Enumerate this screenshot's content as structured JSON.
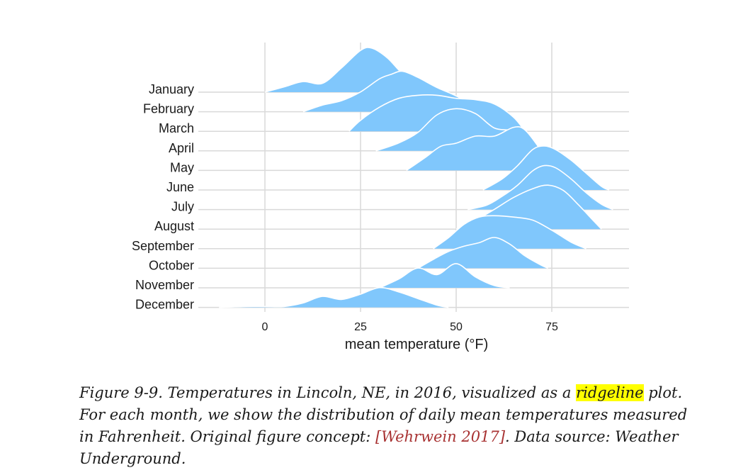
{
  "chart_data": {
    "type": "ridgeline",
    "xlabel": "mean temperature (°F)",
    "ylabel": "",
    "x_ticks": [
      0,
      25,
      50,
      75
    ],
    "xlim": [
      -13,
      95
    ],
    "grid": "vertical",
    "fill_color": "#80c7fc",
    "outline_color": "#ffffff",
    "categories": [
      "January",
      "February",
      "March",
      "April",
      "May",
      "June",
      "July",
      "August",
      "September",
      "October",
      "November",
      "December"
    ],
    "series": [
      {
        "name": "January",
        "x": [
          0,
          5,
          10,
          15,
          20,
          25,
          28,
          32,
          36,
          40,
          45,
          48
        ],
        "density": [
          0,
          0.12,
          0.24,
          0.2,
          0.55,
          0.95,
          1.0,
          0.78,
          0.42,
          0.2,
          0.06,
          0
        ]
      },
      {
        "name": "February",
        "x": [
          10,
          15,
          20,
          25,
          30,
          33,
          36,
          40,
          45,
          50,
          55,
          60
        ],
        "density": [
          0,
          0.15,
          0.25,
          0.45,
          0.75,
          0.85,
          0.92,
          0.78,
          0.55,
          0.36,
          0.12,
          0
        ]
      },
      {
        "name": "March",
        "x": [
          22,
          25,
          30,
          35,
          40,
          45,
          50,
          55,
          60,
          65,
          68
        ],
        "density": [
          0,
          0.25,
          0.55,
          0.75,
          0.82,
          0.82,
          0.75,
          0.72,
          0.62,
          0.32,
          0
        ]
      },
      {
        "name": "April",
        "x": [
          29,
          35,
          40,
          45,
          50,
          55,
          60,
          65,
          70,
          72
        ],
        "density": [
          0,
          0.18,
          0.42,
          0.82,
          0.96,
          0.85,
          0.52,
          0.45,
          0.2,
          0
        ]
      },
      {
        "name": "May",
        "x": [
          37,
          42,
          46,
          50,
          55,
          60,
          65,
          68,
          72,
          76
        ],
        "density": [
          0,
          0.3,
          0.55,
          0.62,
          0.78,
          0.78,
          0.98,
          0.92,
          0.48,
          0
        ]
      },
      {
        "name": "June",
        "x": [
          57,
          62,
          66,
          70,
          73,
          76,
          80,
          84,
          88,
          90
        ],
        "density": [
          0,
          0.25,
          0.55,
          0.92,
          1.0,
          0.92,
          0.68,
          0.38,
          0.08,
          0
        ]
      },
      {
        "name": "July",
        "x": [
          53,
          58,
          62,
          66,
          70,
          73,
          76,
          80,
          84,
          88,
          91
        ],
        "density": [
          0,
          0.1,
          0.3,
          0.55,
          0.88,
          1.0,
          0.95,
          0.7,
          0.38,
          0.12,
          0
        ]
      },
      {
        "name": "August",
        "x": [
          50,
          55,
          60,
          65,
          70,
          74,
          78,
          82,
          86,
          88
        ],
        "density": [
          0,
          0.2,
          0.45,
          0.72,
          0.92,
          1.0,
          0.88,
          0.55,
          0.18,
          0
        ]
      },
      {
        "name": "September",
        "x": [
          44,
          48,
          52,
          56,
          60,
          65,
          70,
          75,
          80,
          84
        ],
        "density": [
          0,
          0.25,
          0.55,
          0.72,
          0.75,
          0.72,
          0.65,
          0.42,
          0.15,
          0
        ]
      },
      {
        "name": "October",
        "x": [
          40,
          44,
          48,
          52,
          56,
          60,
          64,
          68,
          72,
          74
        ],
        "density": [
          0,
          0.2,
          0.38,
          0.5,
          0.58,
          0.7,
          0.55,
          0.28,
          0.08,
          0
        ]
      },
      {
        "name": "November",
        "x": [
          30,
          35,
          40,
          45,
          50,
          55,
          60,
          64
        ],
        "density": [
          0,
          0.2,
          0.45,
          0.3,
          0.55,
          0.25,
          0.05,
          0
        ]
      },
      {
        "name": "December",
        "x": [
          -12,
          -5,
          0,
          5,
          10,
          15,
          20,
          25,
          30,
          35,
          40,
          45,
          48
        ],
        "density": [
          0,
          0.02,
          0.02,
          0.02,
          0.1,
          0.25,
          0.18,
          0.3,
          0.45,
          0.35,
          0.2,
          0.05,
          0
        ]
      }
    ]
  },
  "caption": {
    "prefix": "Figure 9-9. Temperatures in Lincoln, NE, in 2016, visualized as a ",
    "highlight": "ridgeline",
    "middle": " plot. For each month, we show the distribution of daily mean temperatures measured in Fahrenheit. Original figure concept: ",
    "reference": "[Wehrwein 2017]",
    "suffix": ". Data source: Weather Underground.",
    "highlight_color": "#ffff00",
    "reference_color": "#a83232"
  }
}
